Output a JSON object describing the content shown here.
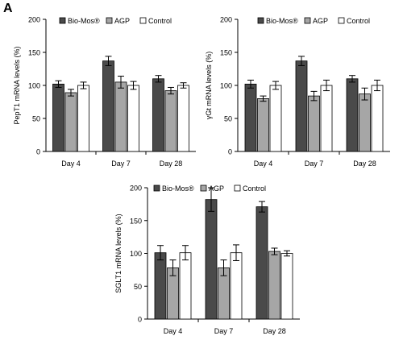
{
  "figure": {
    "panel_label": "A"
  },
  "colors": {
    "Bio-Mos": "#4a4a4a",
    "AGP": "#a6a6a6",
    "Control": "#ffffff",
    "axis": "#000000"
  },
  "chart_data": [
    {
      "type": "bar",
      "ylabel": "PepT1 mRNA levels (%)",
      "ylim": [
        0,
        200
      ],
      "yticks": [
        0,
        50,
        100,
        150,
        200
      ],
      "categories": [
        "Day 4",
        "Day 7",
        "Day 28"
      ],
      "legend": [
        "Bio-Mos®",
        "AGP",
        "Control"
      ],
      "legend_placement": "top",
      "series": [
        {
          "name": "Bio-Mos®",
          "color_key": "Bio-Mos",
          "values": [
            102,
            137,
            110
          ],
          "errors": [
            5,
            7,
            5
          ]
        },
        {
          "name": "AGP",
          "color_key": "AGP",
          "values": [
            89,
            105,
            92
          ],
          "errors": [
            5,
            9,
            5
          ]
        },
        {
          "name": "Control",
          "color_key": "Control",
          "values": [
            100,
            100,
            100
          ],
          "errors": [
            5,
            6,
            4
          ]
        }
      ]
    },
    {
      "type": "bar",
      "ylabel": "γGt mRNA levels (%)",
      "ylim": [
        0,
        200
      ],
      "yticks": [
        0,
        50,
        100,
        150,
        200
      ],
      "categories": [
        "Day 4",
        "Day 7",
        "Day 28"
      ],
      "legend": [
        "Bio-Mos®",
        "AGP",
        "Control"
      ],
      "legend_placement": "top",
      "series": [
        {
          "name": "Bio-Mos®",
          "color_key": "Bio-Mos",
          "values": [
            102,
            137,
            110
          ],
          "errors": [
            6,
            7,
            5
          ]
        },
        {
          "name": "AGP",
          "color_key": "AGP",
          "values": [
            80,
            84,
            87
          ],
          "errors": [
            4,
            7,
            9
          ]
        },
        {
          "name": "Control",
          "color_key": "Control",
          "values": [
            100,
            100,
            100
          ],
          "errors": [
            6,
            8,
            8
          ]
        }
      ]
    },
    {
      "type": "bar",
      "ylabel": "SGLT1 mRNA levels (%)",
      "ylim": [
        0,
        200
      ],
      "yticks": [
        0,
        50,
        100,
        150,
        200
      ],
      "categories": [
        "Day 4",
        "Day 7",
        "Day 28"
      ],
      "legend": [
        "Bio-Mos®",
        "AGP",
        "Control"
      ],
      "legend_placement": "top",
      "series": [
        {
          "name": "Bio-Mos®",
          "color_key": "Bio-Mos",
          "values": [
            101,
            182,
            171
          ],
          "errors": [
            11,
            18,
            8
          ]
        },
        {
          "name": "AGP",
          "color_key": "AGP",
          "values": [
            78,
            78,
            103
          ],
          "errors": [
            12,
            12,
            5
          ]
        },
        {
          "name": "Control",
          "color_key": "Control",
          "values": [
            101,
            101,
            100
          ],
          "errors": [
            11,
            12,
            4
          ]
        }
      ]
    }
  ]
}
